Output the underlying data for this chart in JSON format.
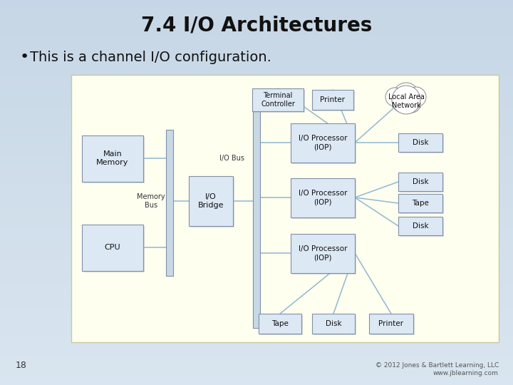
{
  "title": "7.4 I/O Architectures",
  "bullet": "This is a channel I/O configuration.",
  "box_fill": "#dce8f4",
  "box_edge": "#8090a8",
  "line_color": "#90b8d0",
  "footnote_num": "18",
  "footnote_right": "© 2012 Jones & Bartlett Learning, LLC\nwww.jblearning.com",
  "title_fontsize": 20,
  "bullet_fontsize": 14
}
